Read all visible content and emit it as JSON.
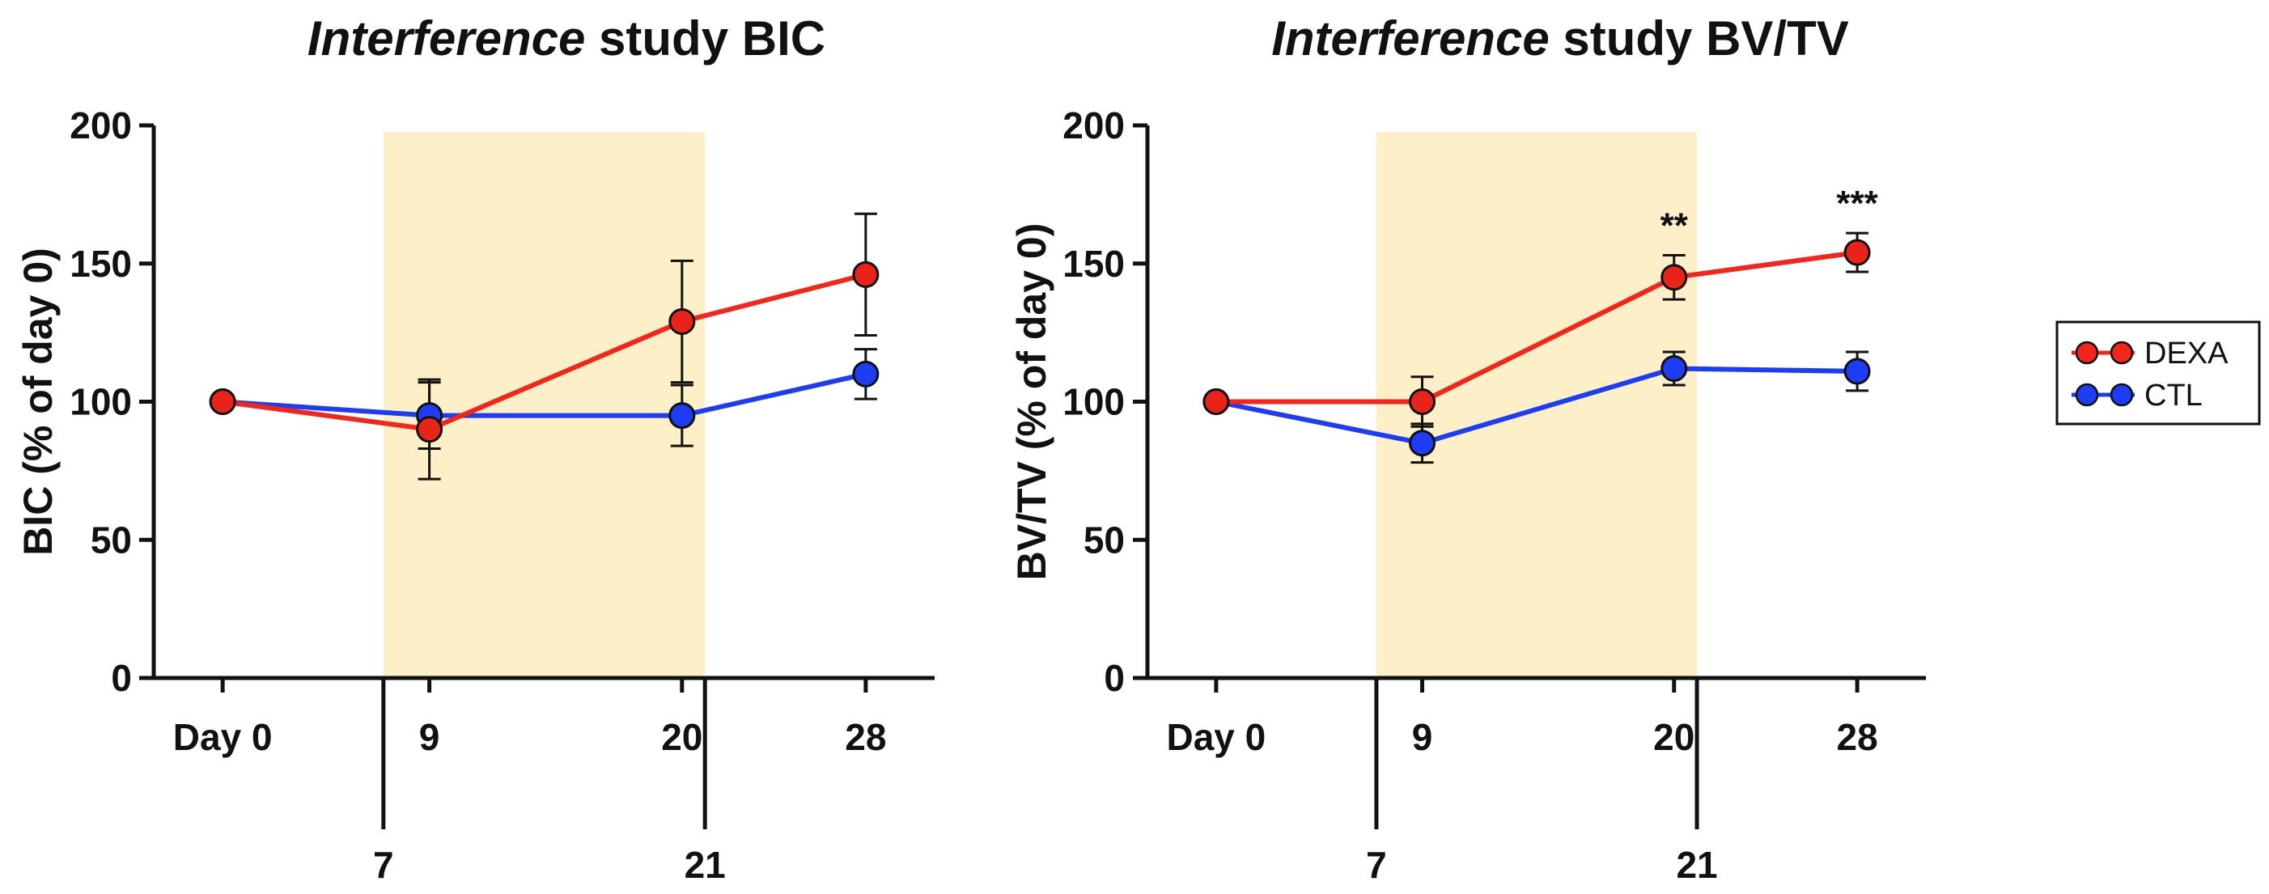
{
  "chart_data": [
    {
      "type": "line",
      "title_italic": "Interference",
      "title_rest": " study BIC",
      "ylabel": "BIC (% of day 0)",
      "xlabel": "",
      "ylim": [
        0,
        200
      ],
      "yticks": [
        0,
        50,
        100,
        150,
        200
      ],
      "xrange": [
        -3,
        31
      ],
      "categories": [
        "Day 0",
        "9",
        "20",
        "28"
      ],
      "category_positions": [
        0,
        9,
        20,
        28
      ],
      "shaded_region": {
        "from": 7,
        "to": 21,
        "labels": [
          "7",
          "21"
        ],
        "color": "#fdf0c8"
      },
      "series": [
        {
          "name": "DEXA",
          "color": "#f2261b",
          "marker": "#e8241a",
          "x": [
            0,
            9,
            20,
            28
          ],
          "values": [
            100,
            90,
            129,
            146
          ],
          "err": [
            0,
            18,
            22,
            22
          ],
          "err_caps": [
            false,
            true,
            true,
            true
          ]
        },
        {
          "name": "CTL",
          "color": "#1d3df5",
          "marker": "#1d3df5",
          "x": [
            0,
            9,
            20,
            28
          ],
          "values": [
            100,
            95,
            95,
            110
          ],
          "err": [
            0,
            12,
            11,
            9
          ],
          "err_caps": [
            false,
            true,
            true,
            true
          ]
        }
      ],
      "annotations": []
    },
    {
      "type": "line",
      "title_italic": "Interference",
      "title_rest": " study BV/TV",
      "ylabel": "BV/TV (% of day 0)",
      "xlabel": "",
      "ylim": [
        0,
        200
      ],
      "yticks": [
        0,
        50,
        100,
        150,
        200
      ],
      "xrange": [
        -3,
        31
      ],
      "categories": [
        "Day 0",
        "9",
        "20",
        "28"
      ],
      "category_positions": [
        0,
        9,
        20,
        28
      ],
      "shaded_region": {
        "from": 7,
        "to": 21,
        "labels": [
          "7",
          "21"
        ],
        "color": "#fdf0c8"
      },
      "series": [
        {
          "name": "DEXA",
          "color": "#f2261b",
          "marker": "#e8241a",
          "x": [
            0,
            9,
            20,
            28
          ],
          "values": [
            100,
            100,
            145,
            154
          ],
          "err": [
            0,
            9,
            8,
            7
          ],
          "err_caps": [
            false,
            true,
            true,
            true
          ]
        },
        {
          "name": "CTL",
          "color": "#1d3df5",
          "marker": "#1d3df5",
          "x": [
            0,
            9,
            20,
            28
          ],
          "values": [
            100,
            85,
            112,
            111
          ],
          "err": [
            0,
            7,
            6,
            7
          ],
          "err_caps": [
            false,
            true,
            true,
            true
          ]
        }
      ],
      "annotations": [
        {
          "x": 20,
          "text": "**"
        },
        {
          "x": 28,
          "text": "***"
        }
      ]
    }
  ],
  "legend": {
    "position": "right",
    "entries": [
      {
        "label": "DEXA",
        "color": "#f2261b"
      },
      {
        "label": "CTL",
        "color": "#1d3df5"
      }
    ]
  }
}
